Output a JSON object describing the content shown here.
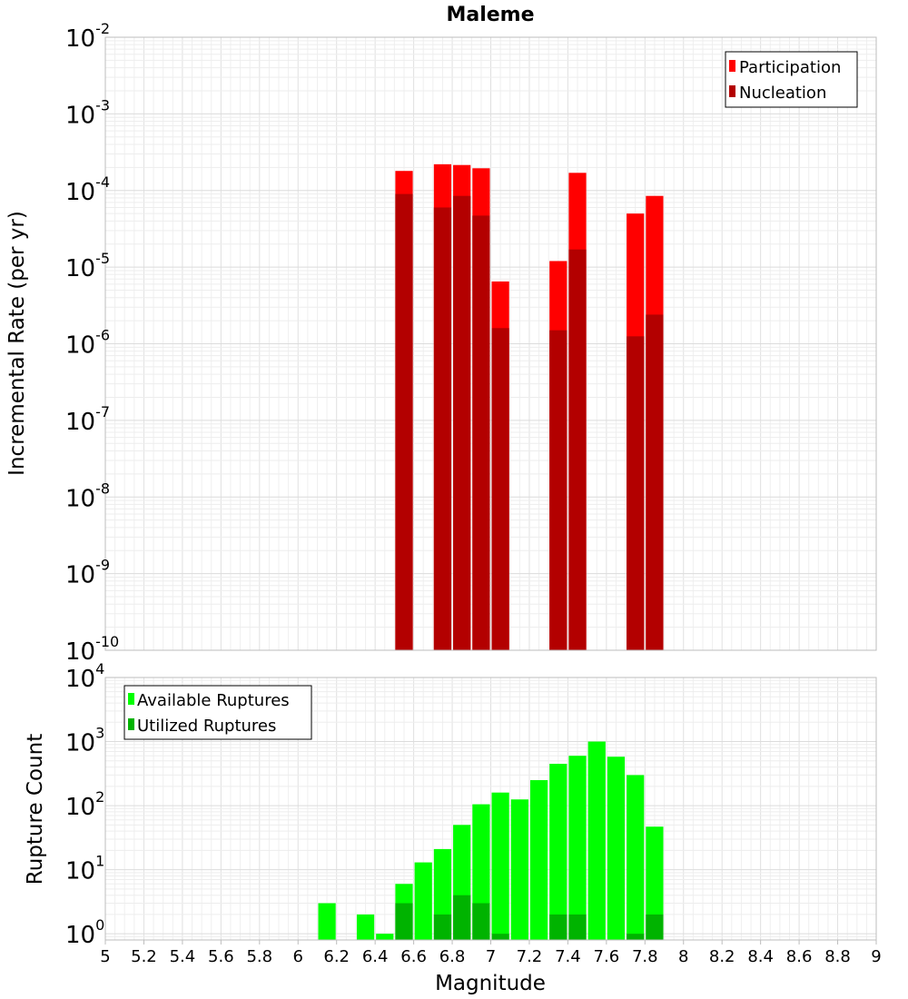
{
  "chart_data": [
    {
      "type": "bar",
      "title": "Maleme",
      "xlabel": "",
      "ylabel": "Incremental Rate (per yr)",
      "xlim": [
        5,
        9
      ],
      "ylim": [
        1e-10,
        0.01
      ],
      "yscale": "log",
      "grid": true,
      "legend_position": "top-right",
      "y_tick_exponents": [
        -10,
        -9,
        -8,
        -7,
        -6,
        -5,
        -4,
        -3,
        -2
      ],
      "bar_width": 0.1,
      "series": [
        {
          "name": "Participation",
          "color": "#ff0000",
          "points": [
            {
              "x": 6.55,
              "y": 0.00018
            },
            {
              "x": 6.75,
              "y": 0.00022
            },
            {
              "x": 6.85,
              "y": 0.000215
            },
            {
              "x": 6.95,
              "y": 0.000195
            },
            {
              "x": 7.05,
              "y": 6.5e-06
            },
            {
              "x": 7.35,
              "y": 1.2e-05
            },
            {
              "x": 7.45,
              "y": 0.00017
            },
            {
              "x": 7.75,
              "y": 5e-05
            },
            {
              "x": 7.85,
              "y": 8.5e-05
            }
          ]
        },
        {
          "name": "Nucleation",
          "color": "#b30000",
          "points": [
            {
              "x": 6.55,
              "y": 9e-05
            },
            {
              "x": 6.75,
              "y": 6e-05
            },
            {
              "x": 6.85,
              "y": 8.5e-05
            },
            {
              "x": 6.95,
              "y": 4.7e-05
            },
            {
              "x": 7.05,
              "y": 1.6e-06
            },
            {
              "x": 7.35,
              "y": 1.5e-06
            },
            {
              "x": 7.45,
              "y": 1.7e-05
            },
            {
              "x": 7.75,
              "y": 1.25e-06
            },
            {
              "x": 7.85,
              "y": 2.4e-06
            }
          ]
        }
      ]
    },
    {
      "type": "bar",
      "title": "",
      "xlabel": "Magnitude",
      "ylabel": "Rupture Count",
      "xlim": [
        5,
        9
      ],
      "ylim": [
        0.8,
        10000
      ],
      "yscale": "log",
      "grid": true,
      "legend_position": "top-left",
      "y_tick_exponents": [
        0,
        1,
        2,
        3,
        4
      ],
      "x_tick_labels": [
        "5",
        "5.2",
        "5.4",
        "5.6",
        "5.8",
        "6",
        "6.2",
        "6.4",
        "6.6",
        "6.8",
        "7",
        "7.2",
        "7.4",
        "7.6",
        "7.8",
        "8",
        "8.2",
        "8.4",
        "8.6",
        "8.8",
        "9"
      ],
      "bar_width": 0.1,
      "series": [
        {
          "name": "Available Ruptures",
          "color": "#00ff00",
          "points": [
            {
              "x": 6.15,
              "y": 3
            },
            {
              "x": 6.35,
              "y": 2
            },
            {
              "x": 6.45,
              "y": 1
            },
            {
              "x": 6.55,
              "y": 6
            },
            {
              "x": 6.65,
              "y": 13
            },
            {
              "x": 6.75,
              "y": 21
            },
            {
              "x": 6.85,
              "y": 50
            },
            {
              "x": 6.95,
              "y": 105
            },
            {
              "x": 7.05,
              "y": 160
            },
            {
              "x": 7.15,
              "y": 125
            },
            {
              "x": 7.25,
              "y": 250
            },
            {
              "x": 7.35,
              "y": 450
            },
            {
              "x": 7.45,
              "y": 600
            },
            {
              "x": 7.55,
              "y": 1000
            },
            {
              "x": 7.65,
              "y": 580
            },
            {
              "x": 7.75,
              "y": 300
            },
            {
              "x": 7.85,
              "y": 47
            }
          ]
        },
        {
          "name": "Utilized Ruptures",
          "color": "#00b300",
          "points": [
            {
              "x": 6.55,
              "y": 3
            },
            {
              "x": 6.75,
              "y": 2
            },
            {
              "x": 6.85,
              "y": 4
            },
            {
              "x": 6.95,
              "y": 3
            },
            {
              "x": 7.05,
              "y": 1
            },
            {
              "x": 7.35,
              "y": 2
            },
            {
              "x": 7.45,
              "y": 2
            },
            {
              "x": 7.75,
              "y": 1
            },
            {
              "x": 7.85,
              "y": 2
            }
          ]
        }
      ]
    }
  ]
}
